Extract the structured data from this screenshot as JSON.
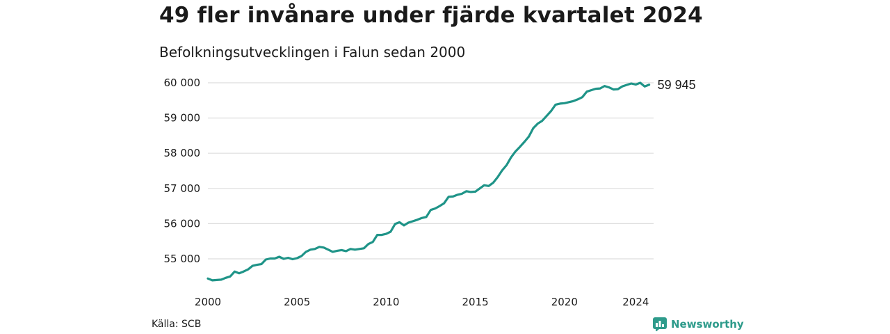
{
  "header": {
    "title": "49 fler invånare under fjärde kvartalet 2024",
    "subtitle": "Befolkningsutvecklingen i Falun sedan 2000"
  },
  "footer": {
    "source": "Källa: SCB",
    "brand": "Newsworthy"
  },
  "colors": {
    "line": "#1f9488",
    "grid": "#dddddd",
    "brand": "#2e9b8b"
  },
  "chart_data": {
    "type": "line",
    "title": "49 fler invånare under fjärde kvartalet 2024",
    "subtitle": "Befolkningsutvecklingen i Falun sedan 2000",
    "xlabel": "",
    "ylabel": "",
    "x_ticks": [
      "2000",
      "2005",
      "2010",
      "2015",
      "2020",
      "2024"
    ],
    "y_ticks": [
      "55 000",
      "56 000",
      "57 000",
      "58 000",
      "59 000",
      "60 000"
    ],
    "xlim": [
      2000,
      2025
    ],
    "ylim": [
      54400,
      60000
    ],
    "grid": true,
    "end_label": "59 945",
    "series": [
      {
        "values": [
          [
            2000.0,
            54440
          ],
          [
            2000.25,
            54390
          ],
          [
            2000.5,
            54400
          ],
          [
            2000.75,
            54410
          ],
          [
            2001.0,
            54460
          ],
          [
            2001.25,
            54500
          ],
          [
            2001.5,
            54640
          ],
          [
            2001.75,
            54590
          ],
          [
            2002.0,
            54640
          ],
          [
            2002.25,
            54700
          ],
          [
            2002.5,
            54800
          ],
          [
            2002.75,
            54830
          ],
          [
            2003.0,
            54850
          ],
          [
            2003.25,
            54980
          ],
          [
            2003.5,
            55010
          ],
          [
            2003.75,
            55010
          ],
          [
            2004.0,
            55060
          ],
          [
            2004.25,
            55000
          ],
          [
            2004.5,
            55030
          ],
          [
            2004.75,
            54990
          ],
          [
            2005.0,
            55020
          ],
          [
            2005.25,
            55080
          ],
          [
            2005.5,
            55200
          ],
          [
            2005.75,
            55260
          ],
          [
            2006.0,
            55280
          ],
          [
            2006.25,
            55340
          ],
          [
            2006.5,
            55320
          ],
          [
            2006.75,
            55260
          ],
          [
            2007.0,
            55200
          ],
          [
            2007.25,
            55230
          ],
          [
            2007.5,
            55250
          ],
          [
            2007.75,
            55220
          ],
          [
            2008.0,
            55280
          ],
          [
            2008.25,
            55260
          ],
          [
            2008.5,
            55280
          ],
          [
            2008.75,
            55300
          ],
          [
            2009.0,
            55420
          ],
          [
            2009.25,
            55480
          ],
          [
            2009.5,
            55680
          ],
          [
            2009.75,
            55680
          ],
          [
            2010.0,
            55710
          ],
          [
            2010.25,
            55770
          ],
          [
            2010.5,
            55990
          ],
          [
            2010.75,
            56040
          ],
          [
            2011.0,
            55950
          ],
          [
            2011.25,
            56030
          ],
          [
            2011.5,
            56070
          ],
          [
            2011.75,
            56110
          ],
          [
            2012.0,
            56160
          ],
          [
            2012.25,
            56190
          ],
          [
            2012.5,
            56390
          ],
          [
            2012.75,
            56430
          ],
          [
            2013.0,
            56500
          ],
          [
            2013.25,
            56580
          ],
          [
            2013.5,
            56760
          ],
          [
            2013.75,
            56770
          ],
          [
            2014.0,
            56820
          ],
          [
            2014.25,
            56850
          ],
          [
            2014.5,
            56920
          ],
          [
            2014.75,
            56900
          ],
          [
            2015.0,
            56910
          ],
          [
            2015.25,
            57000
          ],
          [
            2015.5,
            57090
          ],
          [
            2015.75,
            57070
          ],
          [
            2016.0,
            57160
          ],
          [
            2016.25,
            57320
          ],
          [
            2016.5,
            57510
          ],
          [
            2016.75,
            57660
          ],
          [
            2017.0,
            57880
          ],
          [
            2017.25,
            58050
          ],
          [
            2017.5,
            58180
          ],
          [
            2017.75,
            58320
          ],
          [
            2018.0,
            58470
          ],
          [
            2018.25,
            58710
          ],
          [
            2018.5,
            58840
          ],
          [
            2018.75,
            58920
          ],
          [
            2019.0,
            59060
          ],
          [
            2019.25,
            59200
          ],
          [
            2019.5,
            59380
          ],
          [
            2019.75,
            59410
          ],
          [
            2020.0,
            59420
          ],
          [
            2020.25,
            59450
          ],
          [
            2020.5,
            59480
          ],
          [
            2020.75,
            59530
          ],
          [
            2021.0,
            59590
          ],
          [
            2021.25,
            59750
          ],
          [
            2021.5,
            59790
          ],
          [
            2021.75,
            59830
          ],
          [
            2022.0,
            59840
          ],
          [
            2022.25,
            59910
          ],
          [
            2022.5,
            59870
          ],
          [
            2022.75,
            59810
          ],
          [
            2023.0,
            59820
          ],
          [
            2023.25,
            59900
          ],
          [
            2023.5,
            59940
          ],
          [
            2023.75,
            59980
          ],
          [
            2024.0,
            59950
          ],
          [
            2024.25,
            60000
          ],
          [
            2024.5,
            59896
          ],
          [
            2024.75,
            59945
          ]
        ]
      }
    ]
  }
}
